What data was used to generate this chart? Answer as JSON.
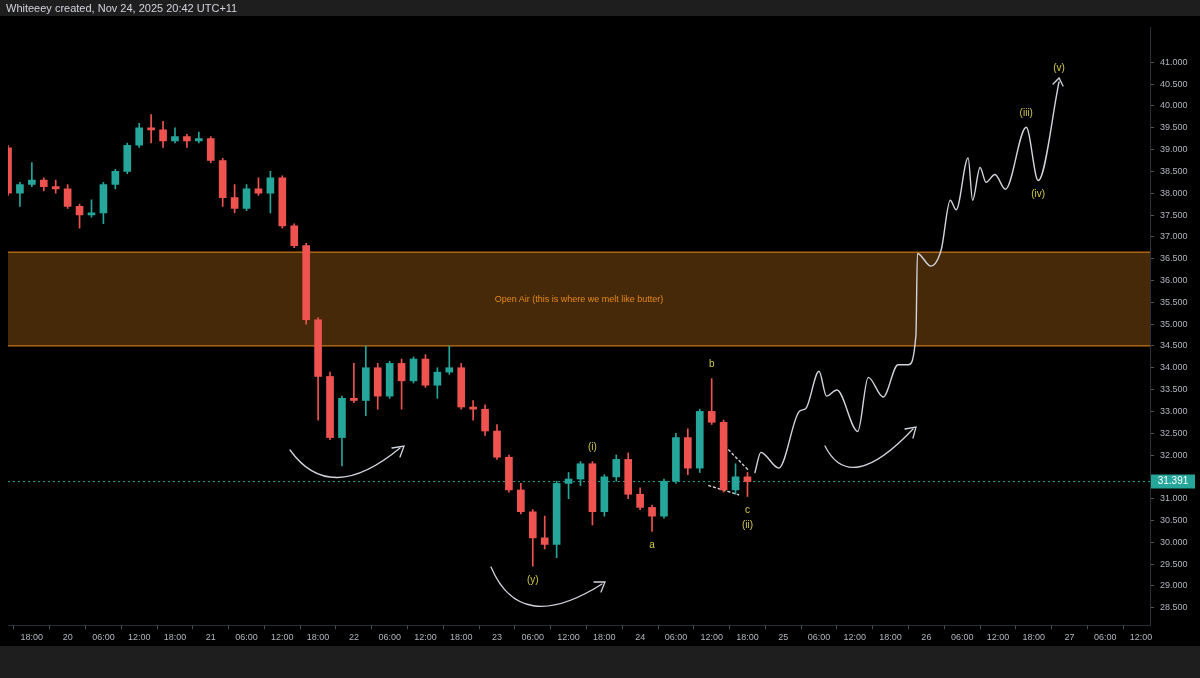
{
  "chart_data": {
    "type": "candlestick",
    "x": [
      "2025-11-19T14:00",
      "2025-11-19T16:00",
      "2025-11-19T18:00",
      "2025-11-19T20:00",
      "2025-11-19T22:00",
      "2025-11-20T00:00",
      "2025-11-20T02:00",
      "2025-11-20T04:00",
      "2025-11-20T06:00",
      "2025-11-20T08:00",
      "2025-11-20T10:00",
      "2025-11-20T12:00",
      "2025-11-20T14:00",
      "2025-11-20T16:00",
      "2025-11-20T18:00",
      "2025-11-20T20:00",
      "2025-11-20T22:00",
      "2025-11-21T00:00",
      "2025-11-21T02:00",
      "2025-11-21T04:00",
      "2025-11-21T06:00",
      "2025-11-21T08:00",
      "2025-11-21T10:00",
      "2025-11-21T12:00",
      "2025-11-21T14:00",
      "2025-11-21T16:00",
      "2025-11-21T18:00",
      "2025-11-21T20:00",
      "2025-11-21T22:00",
      "2025-11-22T00:00",
      "2025-11-22T02:00",
      "2025-11-22T04:00",
      "2025-11-22T06:00",
      "2025-11-22T08:00",
      "2025-11-22T10:00",
      "2025-11-22T12:00",
      "2025-11-22T14:00",
      "2025-11-22T16:00",
      "2025-11-22T18:00",
      "2025-11-22T20:00",
      "2025-11-22T22:00",
      "2025-11-23T00:00",
      "2025-11-23T02:00",
      "2025-11-23T04:00",
      "2025-11-23T06:00",
      "2025-11-23T08:00",
      "2025-11-23T10:00",
      "2025-11-23T12:00",
      "2025-11-23T14:00",
      "2025-11-23T16:00",
      "2025-11-23T18:00",
      "2025-11-23T20:00",
      "2025-11-23T22:00",
      "2025-11-24T00:00",
      "2025-11-24T02:00",
      "2025-11-24T04:00",
      "2025-11-24T06:00",
      "2025-11-24T08:00",
      "2025-11-24T10:00",
      "2025-11-24T12:00",
      "2025-11-24T14:00",
      "2025-11-24T16:00",
      "2025-11-24T18:00"
    ],
    "ohlc": [
      [
        39.04,
        39.1,
        37.95,
        38.0
      ],
      [
        38.0,
        38.25,
        37.7,
        38.2
      ],
      [
        38.2,
        38.7,
        38.15,
        38.3
      ],
      [
        38.3,
        38.35,
        38.05,
        38.15
      ],
      [
        38.15,
        38.3,
        38.0,
        38.1
      ],
      [
        38.1,
        38.2,
        37.65,
        37.7
      ],
      [
        37.7,
        37.75,
        37.2,
        37.5
      ],
      [
        37.5,
        37.85,
        37.45,
        37.55
      ],
      [
        37.55,
        38.25,
        37.3,
        38.2
      ],
      [
        38.2,
        38.55,
        38.1,
        38.5
      ],
      [
        38.5,
        39.15,
        38.45,
        39.1
      ],
      [
        39.1,
        39.6,
        39.05,
        39.5
      ],
      [
        39.5,
        39.8,
        39.15,
        39.45
      ],
      [
        39.45,
        39.65,
        39.05,
        39.2
      ],
      [
        39.2,
        39.5,
        39.15,
        39.3
      ],
      [
        39.3,
        39.35,
        39.05,
        39.2
      ],
      [
        39.2,
        39.4,
        39.15,
        39.25
      ],
      [
        39.25,
        39.3,
        38.7,
        38.75
      ],
      [
        38.75,
        38.8,
        37.7,
        37.9
      ],
      [
        37.9,
        38.2,
        37.55,
        37.65
      ],
      [
        37.65,
        38.2,
        37.6,
        38.1
      ],
      [
        38.1,
        38.35,
        37.95,
        38.0
      ],
      [
        38.0,
        38.5,
        37.55,
        38.35
      ],
      [
        38.35,
        38.4,
        37.2,
        37.25
      ],
      [
        37.25,
        37.3,
        36.75,
        36.8
      ],
      [
        36.8,
        36.85,
        35.0,
        35.1
      ],
      [
        35.1,
        35.15,
        32.8,
        33.8
      ],
      [
        33.8,
        33.9,
        32.35,
        32.4
      ],
      [
        32.4,
        33.35,
        31.75,
        33.3
      ],
      [
        33.3,
        34.1,
        33.2,
        33.25
      ],
      [
        33.25,
        34.5,
        32.9,
        34.0
      ],
      [
        34.0,
        34.1,
        33.05,
        33.35
      ],
      [
        33.35,
        34.15,
        33.3,
        34.1
      ],
      [
        34.1,
        34.2,
        33.05,
        33.7
      ],
      [
        33.7,
        34.25,
        33.65,
        34.2
      ],
      [
        34.2,
        34.3,
        33.55,
        33.6
      ],
      [
        33.6,
        34.0,
        33.3,
        33.9
      ],
      [
        33.9,
        34.5,
        33.85,
        34.0
      ],
      [
        34.0,
        34.1,
        33.05,
        33.1
      ],
      [
        33.1,
        33.25,
        32.8,
        33.05
      ],
      [
        33.05,
        33.15,
        32.45,
        32.55
      ],
      [
        32.55,
        32.7,
        31.9,
        31.95
      ],
      [
        31.95,
        32.0,
        31.15,
        31.2
      ],
      [
        31.2,
        31.35,
        30.65,
        30.7
      ],
      [
        30.7,
        30.75,
        29.45,
        30.1
      ],
      [
        30.1,
        30.6,
        29.85,
        29.95
      ],
      [
        29.95,
        31.4,
        29.65,
        31.35
      ],
      [
        31.35,
        31.6,
        31.0,
        31.45
      ],
      [
        31.45,
        31.85,
        31.3,
        31.8
      ],
      [
        31.8,
        31.85,
        30.4,
        30.7
      ],
      [
        30.7,
        31.55,
        30.6,
        31.5
      ],
      [
        31.5,
        32.0,
        31.4,
        31.9
      ],
      [
        31.9,
        32.05,
        31.0,
        31.1
      ],
      [
        31.1,
        31.25,
        30.75,
        30.8
      ],
      [
        30.8,
        30.85,
        30.25,
        30.6
      ],
      [
        30.6,
        31.45,
        30.55,
        31.4
      ],
      [
        31.4,
        32.5,
        31.35,
        32.4
      ],
      [
        32.4,
        32.6,
        31.55,
        31.7
      ],
      [
        31.7,
        33.05,
        31.6,
        33.0
      ],
      [
        33.0,
        33.75,
        32.7,
        32.75
      ],
      [
        32.75,
        32.8,
        31.15,
        31.2
      ],
      [
        31.2,
        31.8,
        31.1,
        31.5
      ],
      [
        31.5,
        31.6,
        31.05,
        31.391
      ]
    ],
    "colors": [
      "#ef5350",
      "#26a69a",
      "#26a69a",
      "#ef5350",
      "#ef5350",
      "#ef5350",
      "#ef5350",
      "#26a69a",
      "#26a69a",
      "#26a69a",
      "#26a69a",
      "#26a69a",
      "#ef5350",
      "#ef5350",
      "#26a69a",
      "#ef5350",
      "#26a69a",
      "#ef5350",
      "#ef5350",
      "#ef5350",
      "#26a69a",
      "#ef5350",
      "#26a69a",
      "#ef5350",
      "#ef5350",
      "#ef5350",
      "#ef5350",
      "#ef5350",
      "#26a69a",
      "#ef5350",
      "#26a69a",
      "#ef5350",
      "#26a69a",
      "#ef5350",
      "#26a69a",
      "#ef5350",
      "#26a69a",
      "#26a69a",
      "#ef5350",
      "#ef5350",
      "#ef5350",
      "#ef5350",
      "#ef5350",
      "#ef5350",
      "#ef5350",
      "#ef5350",
      "#26a69a",
      "#26a69a",
      "#26a69a",
      "#ef5350",
      "#26a69a",
      "#26a69a",
      "#ef5350",
      "#ef5350",
      "#ef5350",
      "#26a69a",
      "#26a69a",
      "#ef5350",
      "#26a69a",
      "#ef5350",
      "#ef5350",
      "#26a69a",
      "#ef5350"
    ],
    "series": [
      {
        "type": "line",
        "color": "#d1d4dc",
        "line_style": "solid",
        "x": [
          "2025-11-24T19:15",
          "2025-11-24T20:15",
          "2025-11-24T23:15",
          "2025-11-25T02:45",
          "2025-11-25T03:45",
          "2025-11-25T06:00",
          "2025-11-25T07:15",
          "2025-11-25T09:00",
          "2025-11-25T12:30",
          "2025-11-25T14:15",
          "2025-11-25T16:45",
          "2025-11-25T19:15",
          "2025-11-25T21:00",
          "2025-11-25T22:15",
          "2025-11-25T22:30",
          "2025-11-26T00:45",
          "2025-11-26T02:30",
          "2025-11-26T04:00",
          "2025-11-26T05:00",
          "2025-11-26T07:00",
          "2025-11-26T07:45",
          "2025-11-26T09:00",
          "2025-11-26T10:00",
          "2025-11-26T11:30",
          "2025-11-26T13:15",
          "2025-11-26T16:45",
          "2025-11-26T18:45",
          "2025-11-26T22:15"
        ],
        "values": [
          31.6,
          32.06,
          31.7,
          33.01,
          33.06,
          33.92,
          33.35,
          33.49,
          32.54,
          33.78,
          33.33,
          34.07,
          34.07,
          34.75,
          36.62,
          36.33,
          36.71,
          37.84,
          37.62,
          38.81,
          37.84,
          38.59,
          38.25,
          38.43,
          38.09,
          39.51,
          38.29,
          40.55
        ]
      },
      {
        "type": "line",
        "color": "#d1d4dc",
        "line_style": "dotted",
        "x": [
          "2025-11-24T14:15",
          "2025-11-24T18:15"
        ],
        "values": [
          32.2,
          31.64
        ]
      },
      {
        "type": "line",
        "color": "#d1d4dc",
        "line_style": "dotted",
        "x": [
          "2025-11-24T11:30",
          "2025-11-24T16:30"
        ],
        "values": [
          31.3,
          31.09
        ]
      }
    ],
    "bands": [
      {
        "axis": "y",
        "from": 34.5,
        "to": 36.65,
        "label": "Open Air (this is where we melt like butter)",
        "color": "#e8891c"
      }
    ],
    "ref_lines": [
      {
        "axis": "y",
        "value": 31.391,
        "label": "31.391",
        "color": "#26a69a",
        "line_style": "dotted"
      },
      {
        "axis": "y",
        "value": 36.65,
        "color": "#e8891c",
        "line_style": "solid"
      },
      {
        "axis": "y",
        "value": 34.5,
        "color": "#e8891c",
        "line_style": "solid"
      }
    ],
    "annotations": [
      "Whiteeey created, Nov 24, 2025 20:42 UTC+11",
      {
        "text": "(y)",
        "x": "2025-11-23T06:00",
        "y": 29.45
      },
      {
        "text": "(i)",
        "x": "2025-11-23T16:00",
        "y": 31.85
      },
      {
        "text": "a",
        "x": "2025-11-24T02:00",
        "y": 30.25
      },
      {
        "text": "b",
        "x": "2025-11-24T12:00",
        "y": 33.75
      },
      {
        "text": "c",
        "x": "2025-11-24T18:00",
        "y": 31.05
      },
      {
        "text": "(ii)",
        "x": "2025-11-24T18:00",
        "y": 31.05
      },
      {
        "text": "(iii)",
        "x": "2025-11-26T16:45",
        "y": 39.51
      },
      {
        "text": "(iv)",
        "x": "2025-11-26T18:45",
        "y": 38.29
      },
      {
        "text": "(v)",
        "x": "2025-11-26T22:15",
        "y": 40.55
      }
    ],
    "xlim": [
      "2025-11-19T14:00",
      "2025-11-27T13:30"
    ],
    "xticks": [
      {
        "value": "2025-11-19T18:00",
        "label": "18:00"
      },
      {
        "value": "2025-11-20T00:00",
        "label": "20"
      },
      {
        "value": "2025-11-20T06:00",
        "label": "06:00"
      },
      {
        "value": "2025-11-20T12:00",
        "label": "12:00"
      },
      {
        "value": "2025-11-20T18:00",
        "label": "18:00"
      },
      {
        "value": "2025-11-21T00:00",
        "label": "21"
      },
      {
        "value": "2025-11-21T06:00",
        "label": "06:00"
      },
      {
        "value": "2025-11-21T12:00",
        "label": "12:00"
      },
      {
        "value": "2025-11-21T18:00",
        "label": "18:00"
      },
      {
        "value": "2025-11-22T00:00",
        "label": "22"
      },
      {
        "value": "2025-11-22T06:00",
        "label": "06:00"
      },
      {
        "value": "2025-11-22T12:00",
        "label": "12:00"
      },
      {
        "value": "2025-11-22T18:00",
        "label": "18:00"
      },
      {
        "value": "2025-11-23T00:00",
        "label": "23"
      },
      {
        "value": "2025-11-23T06:00",
        "label": "06:00"
      },
      {
        "value": "2025-11-23T12:00",
        "label": "12:00"
      },
      {
        "value": "2025-11-23T18:00",
        "label": "18:00"
      },
      {
        "value": "2025-11-24T00:00",
        "label": "24"
      },
      {
        "value": "2025-11-24T06:00",
        "label": "06:00"
      },
      {
        "value": "2025-11-24T12:00",
        "label": "12:00"
      },
      {
        "value": "2025-11-24T18:00",
        "label": "18:00"
      },
      {
        "value": "2025-11-25T00:00",
        "label": "25"
      },
      {
        "value": "2025-11-25T06:00",
        "label": "06:00"
      },
      {
        "value": "2025-11-25T12:00",
        "label": "12:00"
      },
      {
        "value": "2025-11-25T18:00",
        "label": "18:00"
      },
      {
        "value": "2025-11-26T00:00",
        "label": "26"
      },
      {
        "value": "2025-11-26T06:00",
        "label": "06:00"
      },
      {
        "value": "2025-11-26T12:00",
        "label": "12:00"
      },
      {
        "value": "2025-11-26T18:00",
        "label": "18:00"
      },
      {
        "value": "2025-11-27T00:00",
        "label": "27"
      },
      {
        "value": "2025-11-27T06:00",
        "label": "06:00"
      },
      {
        "value": "2025-11-27T12:00",
        "label": "12:00"
      }
    ],
    "ylim": [
      28.1,
      41.8
    ],
    "yticks": [
      {
        "value": 28.5,
        "label": "28.500"
      },
      {
        "value": 29,
        "label": "29.000"
      },
      {
        "value": 29.5,
        "label": "29.500"
      },
      {
        "value": 30,
        "label": "30.000"
      },
      {
        "value": 30.5,
        "label": "30.500"
      },
      {
        "value": 31,
        "label": "31.000"
      },
      {
        "value": 31.5,
        "label": null
      },
      {
        "value": 32,
        "label": "32.000"
      },
      {
        "value": 32.5,
        "label": "32.500"
      },
      {
        "value": 33,
        "label": "33.000"
      },
      {
        "value": 33.5,
        "label": "33.500"
      },
      {
        "value": 34,
        "label": "34.000"
      },
      {
        "value": 34.5,
        "label": "34.500"
      },
      {
        "value": 35,
        "label": "35.000"
      },
      {
        "value": 35.5,
        "label": "35.500"
      },
      {
        "value": 36,
        "label": "36.000"
      },
      {
        "value": 36.5,
        "label": "36.500"
      },
      {
        "value": 37,
        "label": "37.000"
      },
      {
        "value": 37.5,
        "label": "37.500"
      },
      {
        "value": 38,
        "label": "38.000"
      },
      {
        "value": 38.5,
        "label": "38.500"
      },
      {
        "value": 39,
        "label": "39.000"
      },
      {
        "value": 39.5,
        "label": "39.500"
      },
      {
        "value": 40,
        "label": "40.000"
      },
      {
        "value": 40.5,
        "label": "40.500"
      },
      {
        "value": 41,
        "label": "41.000"
      }
    ],
    "grid": false,
    "legend": false
  }
}
